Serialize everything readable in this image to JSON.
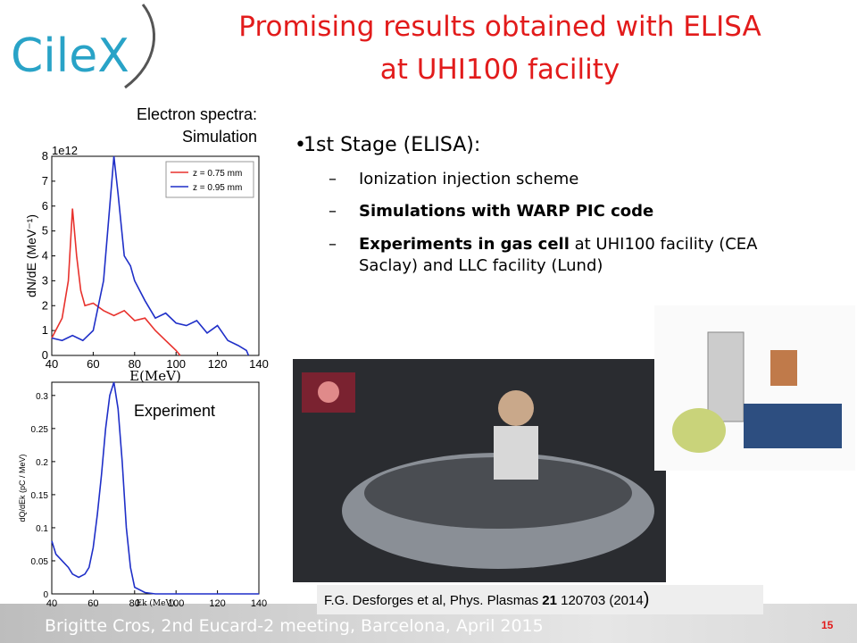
{
  "slide": {
    "logo": "CileX",
    "title": [
      "Promising results obtained with ELISA",
      "at UHI100 facility"
    ],
    "sim_caption": [
      "Electron spectra:",
      "Simulation"
    ],
    "exp_caption": "Experiment",
    "bullet": "1st Stage (ELISA):",
    "sub_bullets": [
      [
        {
          "text": "Ionization injection scheme"
        }
      ],
      [
        {
          "text": "Simulations with WARP PIC code",
          "bold": true
        }
      ],
      [
        {
          "text": "Experiments in gas cell",
          "bold": true
        },
        {
          "text": " at UHI100  facility (CEA Saclay) and LLC facility (Lund)"
        }
      ]
    ],
    "citation": [
      {
        "text": "F.G. Desforges et al, Phys. Plasmas "
      },
      {
        "text": "21",
        "bold": true
      },
      {
        "text": " 120703 (2014"
      },
      {
        "text": ")",
        "large": true
      }
    ],
    "footer": "Brigitte Cros,  2nd Eucard-2 meeting, Barcelona, April 2015",
    "page_number": "15"
  },
  "chart_data": [
    {
      "type": "line",
      "xlabel": "E(MeV)",
      "ylabel": "dN/dE (MeV⁻¹)",
      "offset_label": "1e12",
      "xlim": [
        40,
        140
      ],
      "ylim": [
        0,
        8
      ],
      "xticks": [
        40,
        60,
        80,
        100,
        120,
        140
      ],
      "yticks": [
        0,
        1,
        2,
        3,
        4,
        5,
        6,
        7,
        8
      ],
      "legend": "upper right",
      "series": [
        {
          "name": "z = 0.75 mm",
          "color": "#e8322d",
          "x": [
            40,
            45,
            48,
            50,
            52,
            54,
            56,
            60,
            65,
            70,
            75,
            80,
            85,
            90,
            95,
            100,
            102
          ],
          "values": [
            0.7,
            1.5,
            3,
            5.9,
            4,
            2.6,
            2.0,
            2.1,
            1.8,
            1.6,
            1.8,
            1.4,
            1.5,
            1.0,
            0.6,
            0.2,
            0
          ]
        },
        {
          "name": "z = 0.95 mm",
          "color": "#1f2fc8",
          "x": [
            40,
            45,
            50,
            55,
            60,
            65,
            68,
            70,
            72,
            75,
            78,
            80,
            85,
            90,
            95,
            100,
            105,
            110,
            115,
            120,
            125,
            130,
            134,
            135
          ],
          "values": [
            0.7,
            0.6,
            0.8,
            0.6,
            1.0,
            3.0,
            6,
            8,
            6.5,
            4,
            3.6,
            3.0,
            2.2,
            1.5,
            1.7,
            1.3,
            1.2,
            1.4,
            0.9,
            1.2,
            0.6,
            0.4,
            0.2,
            0
          ]
        }
      ]
    },
    {
      "type": "line",
      "xlabel": "Ek (MeV)",
      "ylabel": "dQ/dEk (pC / MeV)",
      "xlim": [
        40,
        140
      ],
      "ylim": [
        0,
        0.32
      ],
      "xticks": [
        40,
        60,
        80,
        100,
        120,
        140
      ],
      "yticks": [
        0,
        0.05,
        0.1,
        0.15,
        0.2,
        0.25,
        0.3
      ],
      "series": [
        {
          "color": "#1f2fc8",
          "x": [
            40,
            42,
            45,
            48,
            50,
            53,
            56,
            58,
            60,
            62,
            64,
            66,
            68,
            70,
            72,
            74,
            76,
            78,
            80,
            85,
            90,
            140
          ],
          "values": [
            0.08,
            0.06,
            0.05,
            0.04,
            0.03,
            0.025,
            0.03,
            0.04,
            0.07,
            0.12,
            0.18,
            0.25,
            0.3,
            0.32,
            0.28,
            0.2,
            0.1,
            0.04,
            0.01,
            0.002,
            0,
            0
          ]
        }
      ]
    }
  ]
}
